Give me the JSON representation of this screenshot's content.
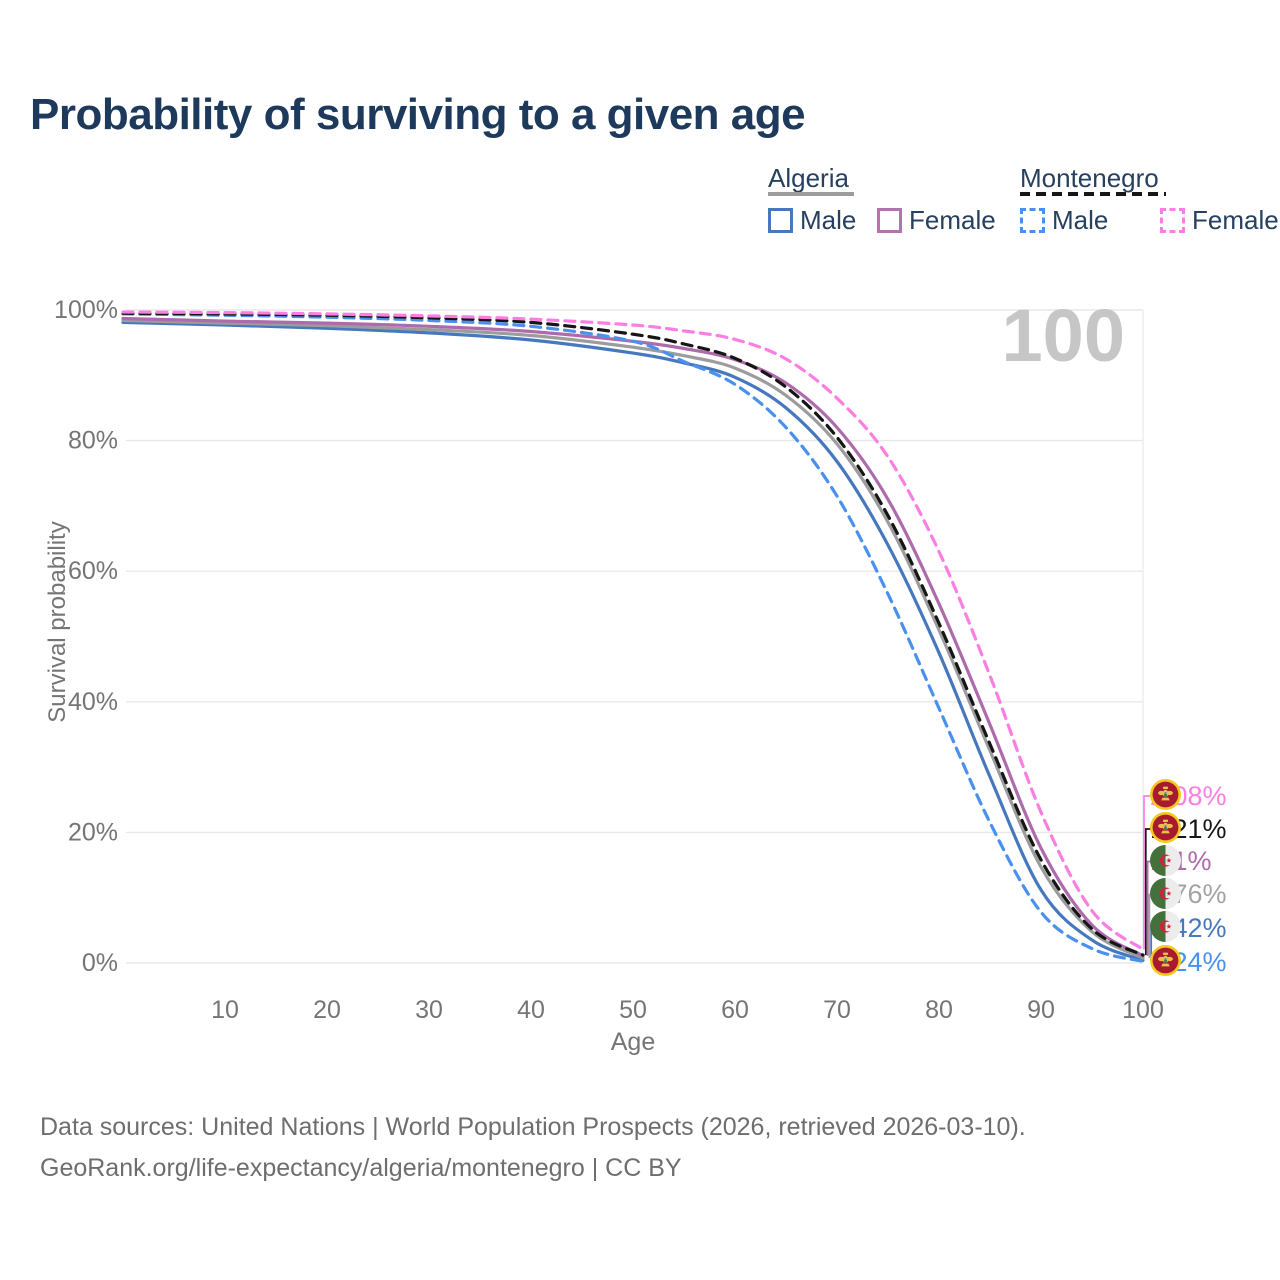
{
  "title": "Probability of surviving to a given age",
  "watermark": "100",
  "legend": {
    "groups": [
      {
        "label": "Algeria",
        "line_style": "solid",
        "rule_color": "#9c9c9c",
        "items": [
          {
            "label": "Male",
            "color": "#4678be"
          },
          {
            "label": "Female",
            "color": "#b472ae"
          }
        ]
      },
      {
        "label": "Montenegro",
        "line_style": "dashed",
        "rule_color": "#161616",
        "items": [
          {
            "label": "Male",
            "color": "#4a90ef"
          },
          {
            "label": "Female",
            "color": "#fc7ee2"
          }
        ]
      }
    ]
  },
  "axes": {
    "y_title": "Survival probability",
    "x_title": "Age",
    "y_tick_labels": [
      "0%",
      "20%",
      "40%",
      "60%",
      "80%",
      "100%"
    ],
    "x_tick_labels": [
      10,
      20,
      30,
      40,
      50,
      60,
      70,
      80,
      90,
      100
    ]
  },
  "footer": {
    "line1": "Data sources: United Nations | World Population Prospects (2026, retrieved 2026-03-10).",
    "line2": "GeoRank.org/life-expectancy/algeria/montenegro | CC BY"
  },
  "chart_data": {
    "type": "line",
    "title": "Probability of surviving to a given age",
    "xlabel": "Age",
    "ylabel": "Survival probability",
    "xlim": [
      0,
      100
    ],
    "ylim": [
      0,
      100
    ],
    "grid": "horizontal",
    "legend_position": "top-right",
    "x_ages": [
      0,
      10,
      20,
      30,
      40,
      50,
      55,
      60,
      65,
      70,
      75,
      80,
      85,
      90,
      95,
      100
    ],
    "series": [
      {
        "id": "algeria_male",
        "name": "Algeria Male",
        "country": "Algeria",
        "sex": "Male",
        "color": "#4678be",
        "dashed": false,
        "flag": "algeria",
        "end_label": "0.42%",
        "end_value_pct": 0.42,
        "label_color": "#4678be",
        "values": [
          98.1,
          97.7,
          97.2,
          96.5,
          95.4,
          93.4,
          91.9,
          89.7,
          85.0,
          76.8,
          64.0,
          47.5,
          28.5,
          11.2,
          3.5,
          0.42
        ]
      },
      {
        "id": "algeria_all",
        "name": "Algeria (both sexes)",
        "country": "Algeria",
        "sex": "All",
        "color": "#9c9c9c",
        "dashed": false,
        "flag": "algeria",
        "end_label": "0.76%",
        "end_value_pct": 0.76,
        "label_color": "#a3a3a3",
        "values": [
          98.4,
          98.0,
          97.6,
          97.0,
          96.1,
          94.3,
          93.0,
          91.1,
          86.9,
          79.5,
          67.5,
          51.0,
          32.5,
          14.7,
          4.8,
          0.76
        ]
      },
      {
        "id": "algeria_female",
        "name": "Algeria Female",
        "country": "Algeria",
        "sex": "Female",
        "color": "#ae6bab",
        "dashed": false,
        "flag": "algeria",
        "end_label": "1.1%",
        "end_value_pct": 1.1,
        "label_color": "#ae6bab",
        "values": [
          98.7,
          98.3,
          98.0,
          97.5,
          96.7,
          95.2,
          94.1,
          92.4,
          88.8,
          82.0,
          71.0,
          55.0,
          36.5,
          17.6,
          5.8,
          1.1
        ]
      },
      {
        "id": "montenegro_male",
        "name": "Montenegro Male",
        "country": "Montenegro",
        "sex": "Male",
        "color": "#4a90ef",
        "dashed": true,
        "flag": "montenegro",
        "end_label": "0.24%",
        "end_value_pct": 0.24,
        "label_color": "#4a90ef",
        "values": [
          99.4,
          99.2,
          98.9,
          98.4,
          97.5,
          95.2,
          92.1,
          88.6,
          82.0,
          71.5,
          56.5,
          39.0,
          21.5,
          7.8,
          2.2,
          0.24
        ]
      },
      {
        "id": "montenegro_all",
        "name": "Montenegro (both sexes)",
        "country": "Montenegro",
        "sex": "All",
        "color": "#161616",
        "dashed": true,
        "flag": "montenegro",
        "end_label": "1.21%",
        "end_value_pct": 1.21,
        "label_color": "#161616",
        "values": [
          99.5,
          99.4,
          99.2,
          98.8,
          98.1,
          96.3,
          94.8,
          92.6,
          88.2,
          80.5,
          68.5,
          52.0,
          33.5,
          15.8,
          5.2,
          1.21
        ]
      },
      {
        "id": "montenegro_female",
        "name": "Montenegro Female",
        "country": "Montenegro",
        "sex": "Female",
        "color": "#fc7ee2",
        "dashed": true,
        "flag": "montenegro",
        "end_label": "2.08%",
        "end_value_pct": 2.08,
        "label_color": "#fc7ee2",
        "values": [
          99.7,
          99.6,
          99.4,
          99.1,
          98.6,
          97.7,
          96.8,
          95.5,
          92.5,
          86.5,
          77.5,
          63.0,
          44.0,
          23.1,
          8.0,
          2.08
        ]
      }
    ],
    "end_label_order": [
      "montenegro_female",
      "montenegro_all",
      "algeria_female",
      "algeria_all",
      "algeria_male",
      "montenegro_male"
    ]
  }
}
